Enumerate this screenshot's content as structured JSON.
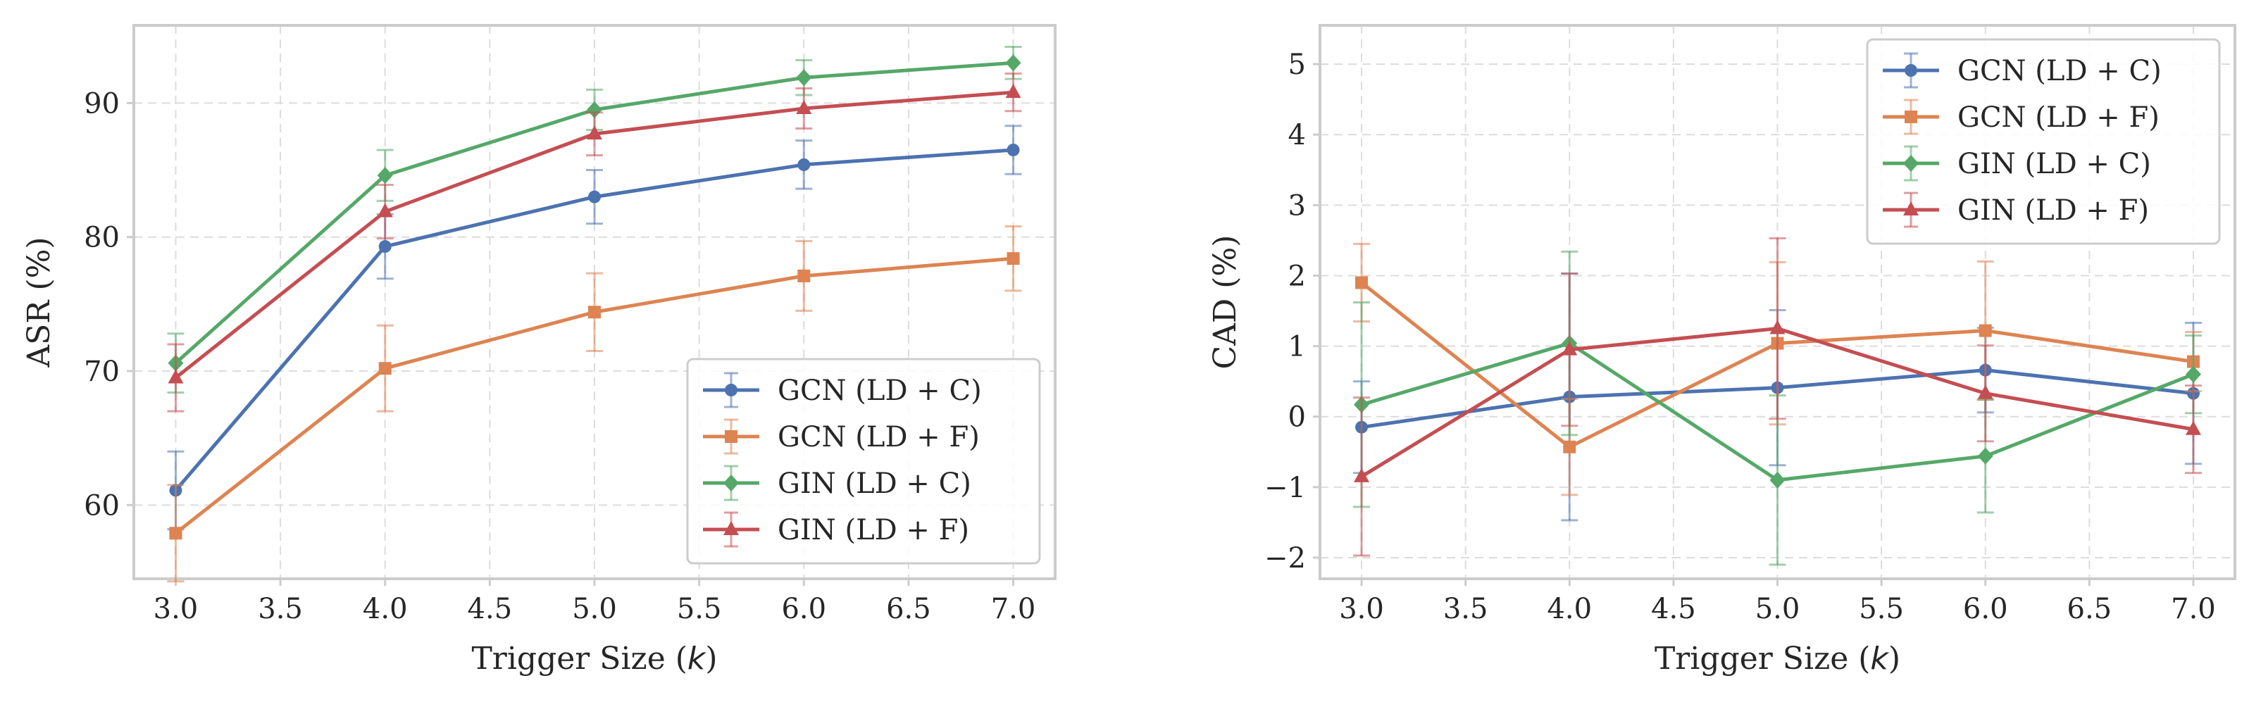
{
  "chart_data": [
    {
      "type": "line",
      "xlabel": "Trigger Size (k)",
      "xlabel_prefix": "Trigger Size (",
      "xlabel_var": "k",
      "xlabel_suffix": ")",
      "ylabel": "ASR (%)",
      "xlim": [
        2.8,
        7.2
      ],
      "ylim": [
        54.5,
        95.8
      ],
      "xticks": [
        3.0,
        3.5,
        4.0,
        4.5,
        5.0,
        5.5,
        6.0,
        6.5,
        7.0
      ],
      "xtick_labels": [
        "3.0",
        "3.5",
        "4.0",
        "4.5",
        "5.0",
        "5.5",
        "6.0",
        "6.5",
        "7.0"
      ],
      "yticks": [
        60,
        70,
        80,
        90
      ],
      "ytick_labels": [
        "60",
        "70",
        "80",
        "90"
      ],
      "grid": true,
      "legend_position": "lower-right",
      "x": [
        3,
        4,
        5,
        6,
        7
      ],
      "series": [
        {
          "name": "GCN (LD + C)",
          "color": "#4c72b0",
          "marker": "circle",
          "values": [
            61.1,
            79.3,
            83.0,
            85.4,
            86.5
          ],
          "errors": [
            2.9,
            2.4,
            2.0,
            1.8,
            1.8
          ]
        },
        {
          "name": "GCN (LD + F)",
          "color": "#dd8452",
          "marker": "square",
          "values": [
            57.9,
            70.2,
            74.4,
            77.1,
            78.4
          ],
          "errors": [
            3.6,
            3.2,
            2.9,
            2.6,
            2.4
          ]
        },
        {
          "name": "GIN (LD + C)",
          "color": "#55a868",
          "marker": "diamond",
          "values": [
            70.6,
            84.6,
            89.5,
            91.9,
            93.0
          ],
          "errors": [
            2.2,
            1.9,
            1.5,
            1.3,
            1.2
          ]
        },
        {
          "name": "GIN (LD + F)",
          "color": "#c44e52",
          "marker": "triangle",
          "values": [
            69.5,
            81.9,
            87.7,
            89.6,
            90.8
          ],
          "errors": [
            2.5,
            2.0,
            1.6,
            1.5,
            1.4
          ]
        }
      ]
    },
    {
      "type": "line",
      "xlabel": "Trigger Size (k)",
      "xlabel_prefix": "Trigger Size (",
      "xlabel_var": "k",
      "xlabel_suffix": ")",
      "ylabel": "CAD (%)",
      "xlim": [
        2.8,
        7.2
      ],
      "ylim": [
        -2.3,
        5.55
      ],
      "xticks": [
        3.0,
        3.5,
        4.0,
        4.5,
        5.0,
        5.5,
        6.0,
        6.5,
        7.0
      ],
      "xtick_labels": [
        "3.0",
        "3.5",
        "4.0",
        "4.5",
        "5.0",
        "5.5",
        "6.0",
        "6.5",
        "7.0"
      ],
      "yticks": [
        -2,
        -1,
        0,
        1,
        2,
        3,
        4,
        5
      ],
      "ytick_labels": [
        "−2",
        "−1",
        "0",
        "1",
        "2",
        "3",
        "4",
        "5"
      ],
      "grid": true,
      "legend_position": "upper-right",
      "x": [
        3,
        4,
        5,
        6,
        7
      ],
      "series": [
        {
          "name": "GCN (LD + C)",
          "color": "#4c72b0",
          "marker": "circle",
          "values": [
            -0.15,
            0.28,
            0.41,
            0.66,
            0.33
          ],
          "errors": [
            0.65,
            1.75,
            1.1,
            0.6,
            1.0
          ]
        },
        {
          "name": "GCN (LD + F)",
          "color": "#dd8452",
          "marker": "square",
          "values": [
            1.9,
            -0.43,
            1.04,
            1.22,
            0.78
          ],
          "errors": [
            0.55,
            0.68,
            1.15,
            0.98,
            0.42
          ]
        },
        {
          "name": "GIN (LD + C)",
          "color": "#55a868",
          "marker": "diamond",
          "values": [
            0.17,
            1.04,
            -0.9,
            -0.56,
            0.6
          ],
          "errors": [
            1.45,
            1.3,
            1.2,
            0.8,
            0.55
          ]
        },
        {
          "name": "GIN (LD + F)",
          "color": "#c44e52",
          "marker": "triangle",
          "values": [
            -0.85,
            0.95,
            1.25,
            0.33,
            -0.18
          ],
          "errors": [
            1.12,
            1.08,
            1.28,
            0.68,
            0.62
          ]
        }
      ]
    }
  ]
}
